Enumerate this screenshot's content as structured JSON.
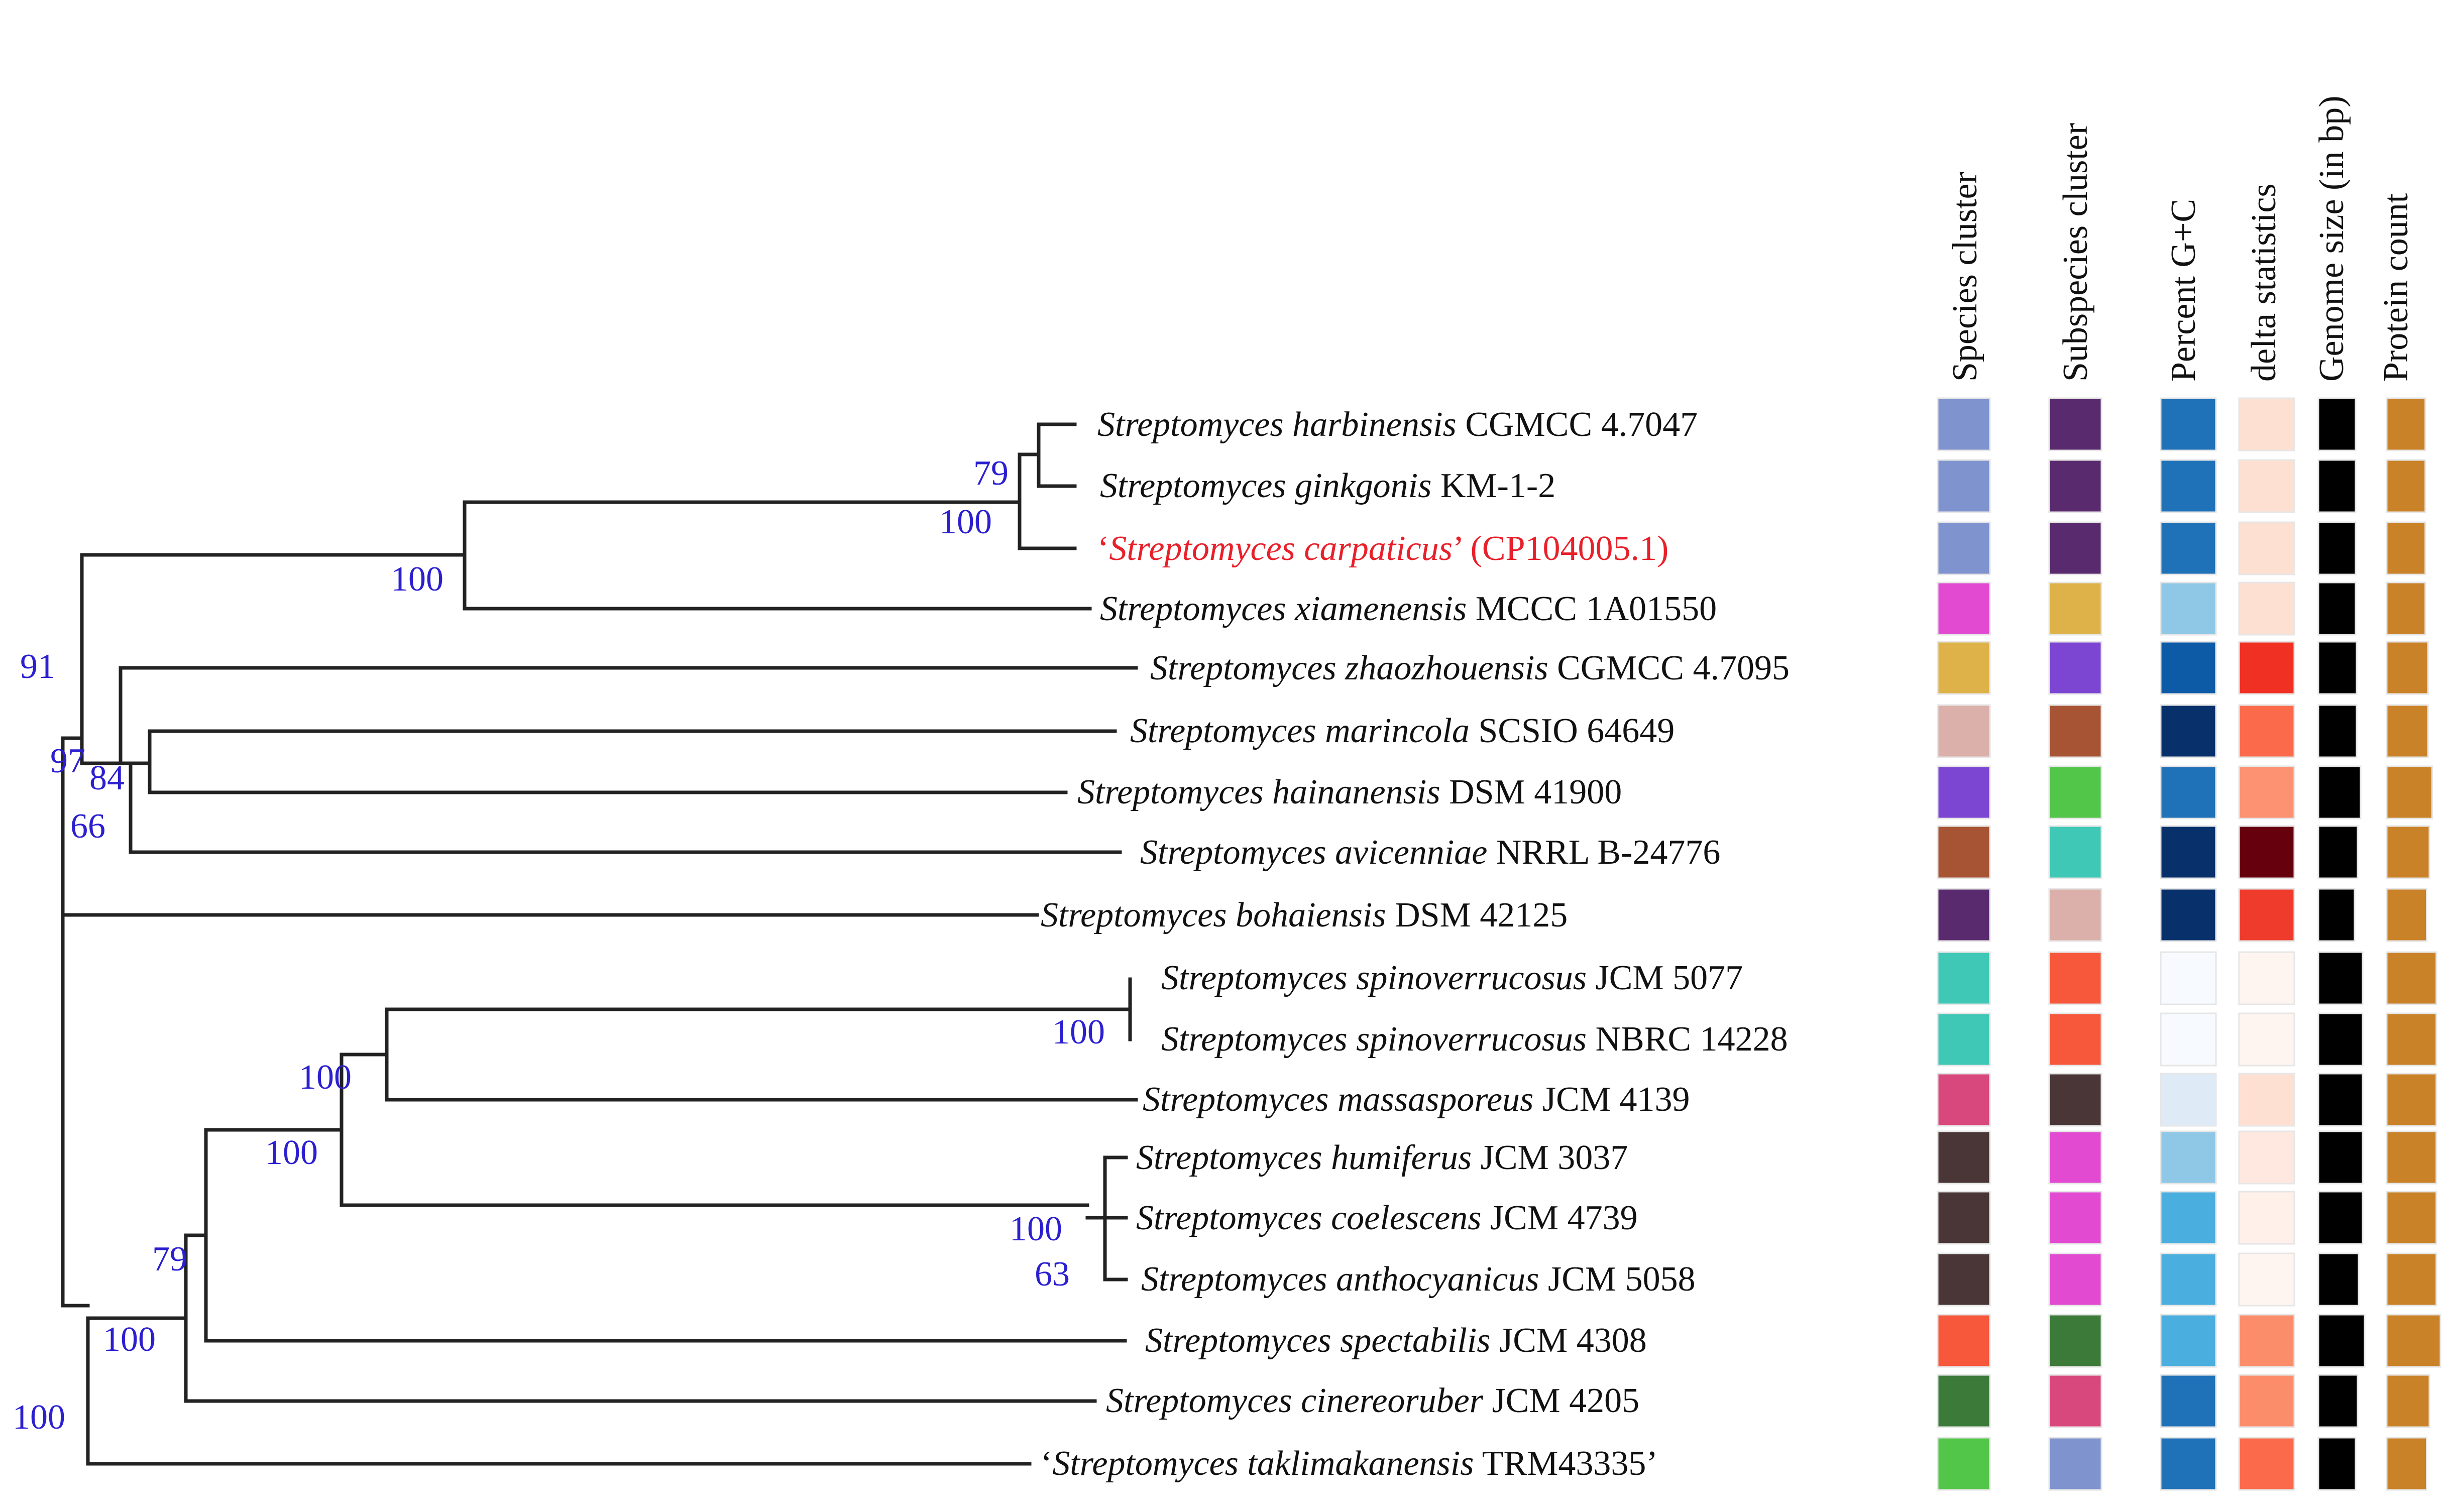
{
  "columns": [
    "Species cluster",
    "Subspecies cluster",
    "Percent G+C",
    "delta statistics",
    "Genome size (in bp)",
    "Protein count"
  ],
  "bootstrap": [
    "79",
    "100",
    "100",
    "91",
    "97",
    "84",
    "66",
    "100",
    "100",
    "100",
    "100",
    "63",
    "79",
    "100",
    "100"
  ],
  "taxa": [
    {
      "prefix": "",
      "name": "Streptomyces harbinensis",
      "strain": " CGMCC 4.7047",
      "suffix": "",
      "highlight": false,
      "cells": [
        "#7f93cf",
        "#5a2a6e",
        "#1f71b8",
        "#fde0d2",
        "#000000",
        "#c98228"
      ],
      "genome": 0.55,
      "protein": 0.45
    },
    {
      "prefix": "",
      "name": "Streptomyces ginkgonis",
      "strain": " KM-1-2",
      "suffix": "",
      "highlight": false,
      "cells": [
        "#7f93cf",
        "#5a2a6e",
        "#1f71b8",
        "#fde0d2",
        "#000000",
        "#c98228"
      ],
      "genome": 0.55,
      "protein": 0.45
    },
    {
      "prefix": "‘",
      "name": "Streptomyces carpaticus",
      "strain": "’ (CP104005.1)",
      "suffix": "",
      "highlight": true,
      "cells": [
        "#7f93cf",
        "#5a2a6e",
        "#1f71b8",
        "#fde0d2",
        "#000000",
        "#c98228"
      ],
      "genome": 0.55,
      "protein": 0.45
    },
    {
      "prefix": "",
      "name": "Streptomyces xiamenensis",
      "strain": " MCCC 1A01550",
      "suffix": "",
      "highlight": false,
      "cells": [
        "#e14ad1",
        "#deb248",
        "#8ec8e6",
        "#fde0d2",
        "#000000",
        "#c98228"
      ],
      "genome": 0.55,
      "protein": 0.45
    },
    {
      "prefix": "",
      "name": "Streptomyces zhaozhouensis",
      "strain": " CGMCC 4.7095",
      "suffix": "",
      "highlight": false,
      "cells": [
        "#deb248",
        "#7c45d2",
        "#0d5aa6",
        "#f03022",
        "#000000",
        "#c98228"
      ],
      "genome": 0.6,
      "protein": 0.55
    },
    {
      "prefix": "",
      "name": "Streptomyces marincola",
      "strain": " SCSIO 64649",
      "suffix": "",
      "highlight": false,
      "cells": [
        "#dbb0aa",
        "#a65434",
        "#08306b",
        "#fb6a4a",
        "#000000",
        "#c98228"
      ],
      "genome": 0.6,
      "protein": 0.55
    },
    {
      "prefix": "",
      "name": "Streptomyces hainanensis",
      "strain": " DSM 41900",
      "suffix": "",
      "highlight": false,
      "cells": [
        "#7c45d2",
        "#52c648",
        "#1f71b8",
        "#fc9272",
        "#000000",
        "#c98228"
      ],
      "genome": 0.8,
      "protein": 0.7
    },
    {
      "prefix": "",
      "name": "Streptomyces avicenniae",
      "strain": " NRRL B-24776",
      "suffix": "",
      "highlight": false,
      "cells": [
        "#a65434",
        "#3ec8b5",
        "#08306b",
        "#67000d",
        "#000000",
        "#c98228"
      ],
      "genome": 0.65,
      "protein": 0.6
    },
    {
      "prefix": "",
      "name": "Streptomyces bohaiensis",
      "strain": " DSM 42125",
      "suffix": "",
      "highlight": false,
      "cells": [
        "#5a2a6e",
        "#dbb0aa",
        "#08306b",
        "#ef3b2c",
        "#000000",
        "#c98228"
      ],
      "genome": 0.5,
      "protein": 0.5
    },
    {
      "prefix": "",
      "name": "Streptomyces spinoverrucosus",
      "strain": " JCM 5077",
      "suffix": "",
      "highlight": false,
      "cells": [
        "#3ec8b5",
        "#f7573a",
        "#f7fbff",
        "#fff5f0",
        "#000000",
        "#c98228"
      ],
      "genome": 0.9,
      "protein": 0.85
    },
    {
      "prefix": "",
      "name": "Streptomyces spinoverrucosus",
      "strain": " NBRC 14228",
      "suffix": "",
      "highlight": false,
      "cells": [
        "#3ec8b5",
        "#f7573a",
        "#f7fbff",
        "#fff5f0",
        "#000000",
        "#c98228"
      ],
      "genome": 0.9,
      "protein": 0.85
    },
    {
      "prefix": "",
      "name": "Streptomyces massasporeus",
      "strain": " JCM 4139",
      "suffix": "",
      "highlight": false,
      "cells": [
        "#d9487c",
        "#4a3636",
        "#deebf7",
        "#fee0d2",
        "#000000",
        "#c98228"
      ],
      "genome": 0.9,
      "protein": 0.85
    },
    {
      "prefix": "",
      "name": "Streptomyces humiferus",
      "strain": " JCM 3037",
      "suffix": "",
      "highlight": false,
      "cells": [
        "#4a3636",
        "#e14ad1",
        "#8ec8e6",
        "#fee8e0",
        "#000000",
        "#c98228"
      ],
      "genome": 0.9,
      "protein": 0.85
    },
    {
      "prefix": "",
      "name": "Streptomyces coelescens",
      "strain": " JCM 4739",
      "suffix": "",
      "highlight": false,
      "cells": [
        "#4a3636",
        "#e14ad1",
        "#4aaedf",
        "#fff0ea",
        "#000000",
        "#c98228"
      ],
      "genome": 0.9,
      "protein": 0.85
    },
    {
      "prefix": "",
      "name": "Streptomyces anthocyanicus",
      "strain": " JCM 5058",
      "suffix": "",
      "highlight": false,
      "cells": [
        "#4a3636",
        "#e14ad1",
        "#4aaedf",
        "#fff5f0",
        "#000000",
        "#c98228"
      ],
      "genome": 0.7,
      "protein": 0.85
    },
    {
      "prefix": "",
      "name": "Streptomyces spectabilis",
      "strain": " JCM 4308",
      "suffix": "",
      "highlight": false,
      "cells": [
        "#f7573a",
        "#3b7a38",
        "#4aaedf",
        "#fc8d6a",
        "#000000",
        "#c98228"
      ],
      "genome": 1.0,
      "protein": 1.0
    },
    {
      "prefix": "",
      "name": "Streptomyces cinereoruber",
      "strain": " JCM 4205",
      "suffix": "",
      "highlight": false,
      "cells": [
        "#3b7a38",
        "#d9487c",
        "#1f71b8",
        "#fc8d6a",
        "#000000",
        "#c98228"
      ],
      "genome": 0.65,
      "protein": 0.6
    },
    {
      "prefix": "‘",
      "name": "Streptomyces taklimakanensis",
      "strain": " TRM43335",
      "suffix": "’",
      "highlight": false,
      "cells": [
        "#52c648",
        "#7f93cf",
        "#1f71b8",
        "#fb6a4a",
        "#000000",
        "#c98228"
      ],
      "genome": 0.55,
      "protein": 0.5
    }
  ]
}
